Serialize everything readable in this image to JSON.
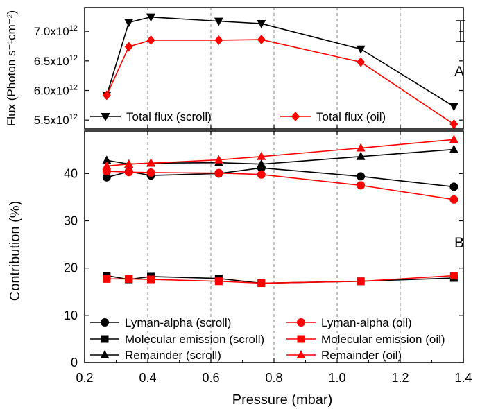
{
  "colors": {
    "scroll": "#000000",
    "oil": "#ff0000",
    "grid": "#808080"
  },
  "chart_data": [
    {
      "type": "line",
      "panel_label": "A",
      "ylabel": "Flux (Photon s⁻¹cm⁻²)",
      "ylim": [
        5.35,
        7.4
      ],
      "y_ticks": [
        5.5,
        6.0,
        6.5,
        7.0
      ],
      "y_tick_labels": [
        {
          "base": "5.5x10",
          "exp": "12"
        },
        {
          "base": "6.0x10",
          "exp": "12"
        },
        {
          "base": "6.5x10",
          "exp": "12"
        },
        {
          "base": "7.0x10",
          "exp": "12"
        }
      ],
      "x": [
        0.27,
        0.34,
        0.41,
        0.625,
        0.76,
        1.075,
        1.37
      ],
      "series": [
        {
          "name": "Total flux (scroll)",
          "color": "#000000",
          "marker": "triangle-down",
          "values": [
            5.92,
            7.15,
            7.24,
            7.17,
            7.13,
            6.7,
            5.73
          ]
        },
        {
          "name": "Total flux (oil)",
          "color": "#ff0000",
          "marker": "diamond",
          "values": [
            5.92,
            6.74,
            6.85,
            6.85,
            6.86,
            6.48,
            5.43
          ]
        }
      ],
      "legend": "bottom, two columns",
      "error_bar": "top-right",
      "grid": "vertical dashed"
    },
    {
      "type": "line",
      "panel_label": "B",
      "ylabel": "Contribution (%)",
      "xlabel": "Pressure (mbar)",
      "xlim": [
        0.2,
        1.4
      ],
      "x_ticks": [
        0.2,
        0.4,
        0.6,
        0.8,
        1.0,
        1.2,
        1.4
      ],
      "x_tick_labels": [
        "0.2",
        "0.4",
        "0.6",
        "0.8",
        "1.0",
        "1.2",
        "1.4"
      ],
      "ylim": [
        0,
        49
      ],
      "y_ticks": [
        0,
        10,
        20,
        30,
        40
      ],
      "y_tick_labels": [
        "0",
        "10",
        "20",
        "30",
        "40"
      ],
      "x": [
        0.27,
        0.34,
        0.41,
        0.625,
        0.76,
        1.075,
        1.37
      ],
      "series": [
        {
          "name": "Lyman-alpha (scroll)",
          "color": "#000000",
          "marker": "circle",
          "values": [
            39.2,
            40.4,
            39.6,
            40.0,
            41.2,
            39.4,
            37.2
          ]
        },
        {
          "name": "Molecular emission (scroll)",
          "color": "#000000",
          "marker": "square",
          "values": [
            18.4,
            17.6,
            18.2,
            17.8,
            16.8,
            17.2,
            17.9
          ]
        },
        {
          "name": "Remainder (scroll)",
          "color": "#000000",
          "marker": "triangle-up",
          "values": [
            42.8,
            42.0,
            42.2,
            42.3,
            42.0,
            43.6,
            45.1
          ]
        },
        {
          "name": "Lyman-alpha (oil)",
          "color": "#ff0000",
          "marker": "circle",
          "values": [
            40.5,
            40.3,
            40.2,
            40.1,
            39.8,
            37.5,
            34.5
          ]
        },
        {
          "name": "Molecular emission (oil)",
          "color": "#ff0000",
          "marker": "square",
          "values": [
            17.7,
            17.7,
            17.6,
            17.2,
            16.8,
            17.2,
            18.4
          ]
        },
        {
          "name": "Remainder (oil)",
          "color": "#ff0000",
          "marker": "triangle-up",
          "values": [
            41.6,
            42.0,
            42.2,
            42.9,
            43.6,
            45.4,
            47.2
          ]
        }
      ],
      "legend": "bottom, two columns",
      "grid": "vertical dashed"
    }
  ]
}
